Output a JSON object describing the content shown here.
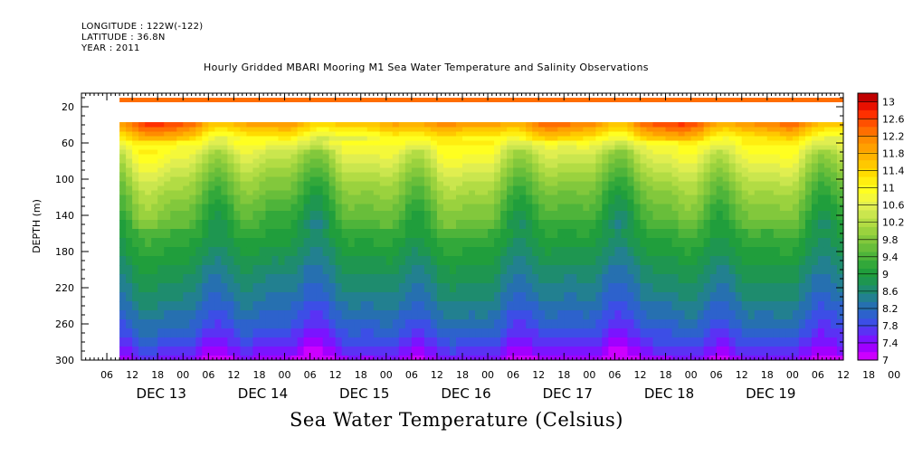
{
  "header": {
    "longitude": "LONGITUDE : 122W(-122)",
    "latitude": "LATITUDE : 36.8N",
    "year": "YEAR : 2011"
  },
  "caption": "Sea Water Temperature (Celsius)",
  "chart_data": {
    "type": "heatmap",
    "title": "Hourly Gridded MBARI Mooring M1 Sea Water Temperature and Salinity Observations",
    "ylabel": "DEPTH (m)",
    "xlabel": "",
    "x_range_hours_since_dec13_00": [
      -12,
      168
    ],
    "x_data_start_hours": -3,
    "ylim": [
      300,
      5
    ],
    "y_inverted": true,
    "y_ticks": [
      20,
      60,
      100,
      140,
      180,
      220,
      260,
      300
    ],
    "x_hour_ticks": [
      "06",
      "12",
      "18",
      "00",
      "06",
      "12",
      "18",
      "00",
      "06",
      "12",
      "18",
      "00",
      "06",
      "12",
      "18",
      "00",
      "06",
      "12",
      "18",
      "00",
      "06",
      "12",
      "18",
      "00",
      "06",
      "12",
      "18",
      "00",
      "06",
      "12",
      "18",
      "00"
    ],
    "x_day_labels": [
      "DEC 13",
      "DEC 14",
      "DEC 15",
      "DEC 16",
      "DEC 17",
      "DEC 18",
      "DEC 19"
    ],
    "colorbar": {
      "min": 7,
      "max": 13.2,
      "step": 0.2,
      "tick_labels": [
        "13",
        "12.6",
        "12.2",
        "11.8",
        "11.4",
        "11",
        "10.6",
        "10.2",
        "9.8",
        "9.4",
        "9",
        "8.6",
        "8.2",
        "7.8",
        "7.4",
        "7"
      ],
      "colors": [
        "#cc00ff",
        "#a000ff",
        "#7a14ff",
        "#5a32f4",
        "#3c4ee6",
        "#2d62cc",
        "#2670b0",
        "#228090",
        "#1e8c6e",
        "#1e9650",
        "#209e3c",
        "#32a83a",
        "#4eb43a",
        "#68be3a",
        "#82c83c",
        "#9ad23e",
        "#b2dc44",
        "#cae64e",
        "#e0ee50",
        "#f4f83a",
        "#ffff20",
        "#ffee10",
        "#ffdc00",
        "#ffc800",
        "#ffb400",
        "#ffa000",
        "#ff8c00",
        "#ff6e00",
        "#ff5000",
        "#ff3000",
        "#e81000",
        "#c00000"
      ]
    },
    "depth_levels_m": [
      40,
      45,
      50,
      55,
      60,
      65,
      70,
      75,
      80,
      85,
      90,
      95,
      100,
      105,
      110,
      115,
      120,
      125,
      130,
      140,
      150,
      160,
      170,
      180,
      190,
      200,
      210,
      220,
      230,
      240,
      250,
      260,
      270,
      280,
      290,
      300
    ],
    "profile_temperatures_c": [
      12.1,
      11.8,
      11.5,
      11.2,
      11.0,
      10.8,
      10.65,
      10.55,
      10.45,
      10.35,
      10.25,
      10.15,
      10.05,
      9.95,
      9.88,
      9.8,
      9.72,
      9.65,
      9.58,
      9.45,
      9.32,
      9.2,
      9.08,
      8.96,
      8.84,
      8.72,
      8.62,
      8.52,
      8.42,
      8.3,
      8.18,
      8.05,
      7.9,
      7.72,
      7.52,
      7.3
    ],
    "surface_band": {
      "depth_m": [
        10,
        15
      ],
      "value_c": 12.6
    }
  }
}
